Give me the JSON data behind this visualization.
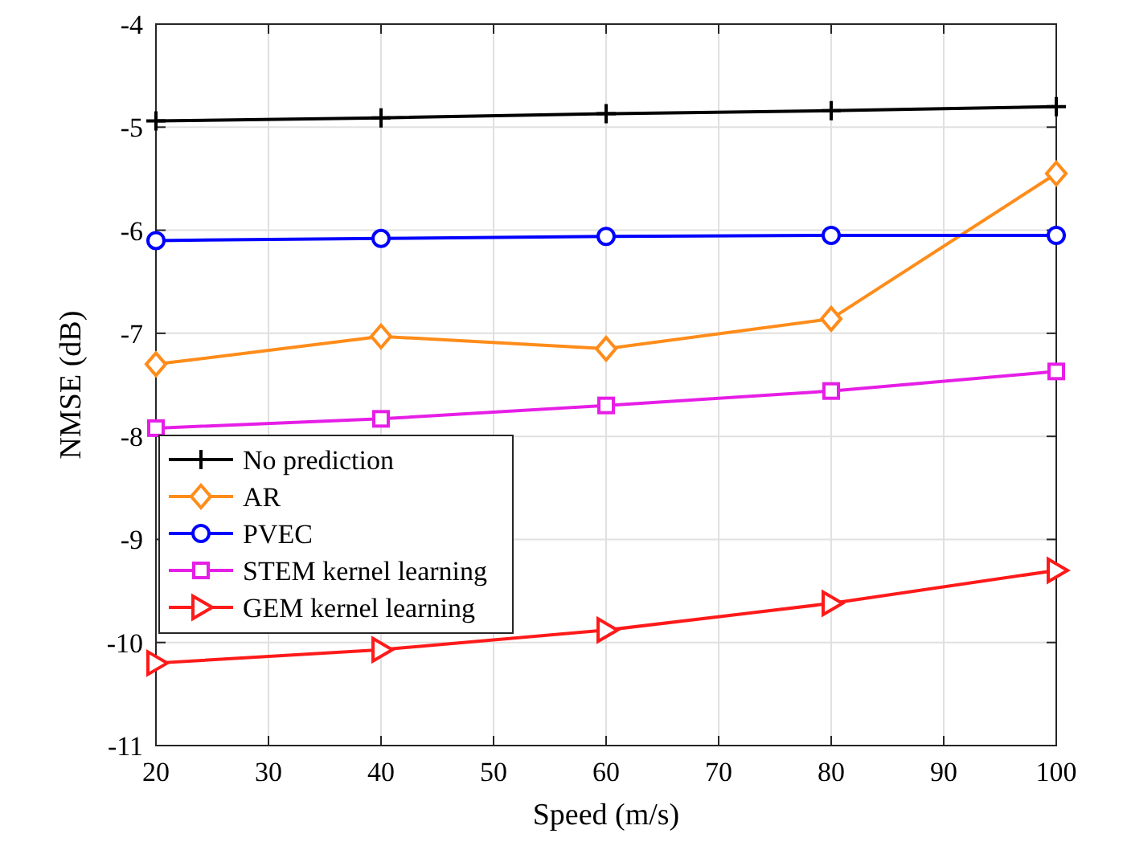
{
  "chart_data": {
    "type": "line",
    "xlabel": "Speed (m/s)",
    "ylabel": "NMSE (dB)",
    "x": [
      20,
      40,
      60,
      80,
      100
    ],
    "xlim": [
      20,
      100
    ],
    "xticks": [
      20,
      30,
      40,
      50,
      60,
      70,
      80,
      90,
      100
    ],
    "ylim": [
      -11,
      -4
    ],
    "yticks": [
      -11,
      -10,
      -9,
      -8,
      -7,
      -6,
      -5,
      -4
    ],
    "grid": true,
    "legend": "bottom left",
    "series": [
      {
        "name": "No prediction",
        "color": "#000000",
        "marker": "cross",
        "values": [
          -4.94,
          -4.91,
          -4.87,
          -4.84,
          -4.8
        ]
      },
      {
        "name": "AR",
        "color": "#ff8c1a",
        "marker": "diamond",
        "values": [
          -7.3,
          -7.03,
          -7.15,
          -6.86,
          -5.45
        ]
      },
      {
        "name": "PVEC",
        "color": "#0000ff",
        "marker": "circle",
        "values": [
          -6.1,
          -6.08,
          -6.06,
          -6.05,
          -6.05
        ]
      },
      {
        "name": "STEM kernel learning",
        "color": "#e61ee6",
        "marker": "square",
        "values": [
          -7.92,
          -7.83,
          -7.7,
          -7.56,
          -7.37
        ]
      },
      {
        "name": "GEM kernel learning",
        "color": "#ff1a1a",
        "marker": "triangle",
        "values": [
          -10.2,
          -10.07,
          -9.88,
          -9.62,
          -9.3
        ]
      }
    ]
  }
}
